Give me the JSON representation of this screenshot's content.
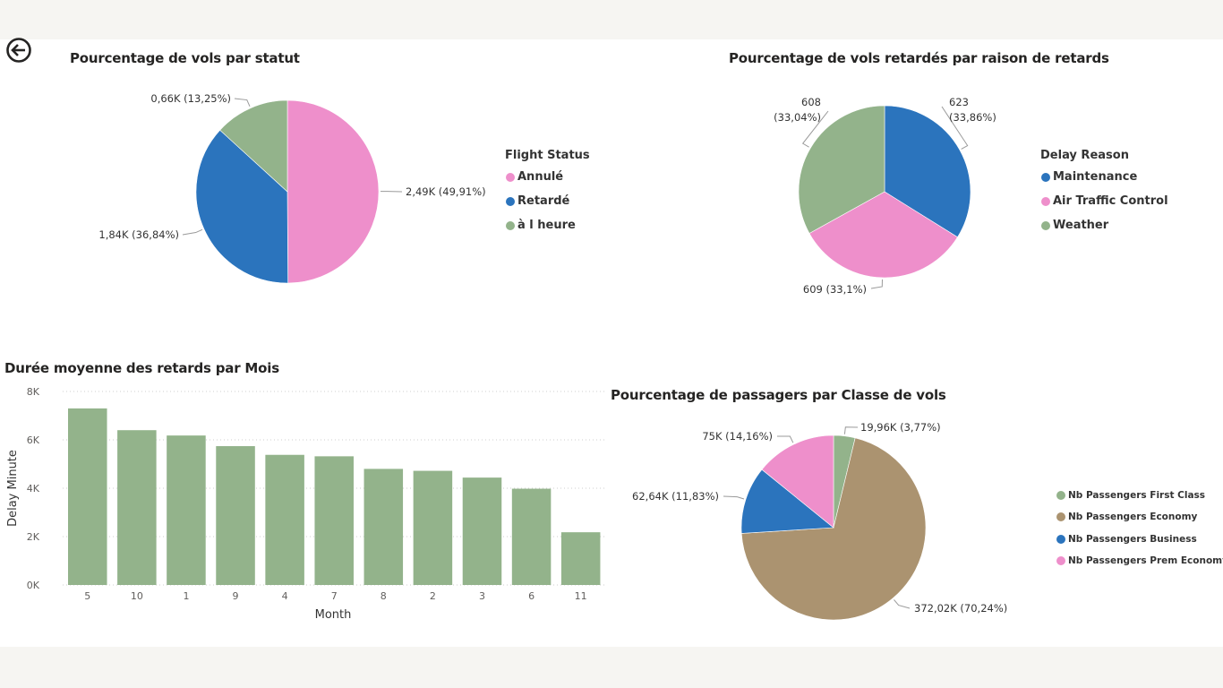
{
  "chart_data": [
    {
      "type": "pie",
      "title": "Pourcentage de vols par statut",
      "legend_title": "Flight Status",
      "legend_position": "right",
      "slices": [
        {
          "name": "Annulé",
          "value": 2490,
          "label": "2,49K (49,91%)",
          "color": "#ee8fcb"
        },
        {
          "name": "Retardé",
          "value": 1840,
          "label": "1,84K (36,84%)",
          "color": "#2b74bd"
        },
        {
          "name": "à l heure",
          "value": 660,
          "label": "0,66K (13,25%)",
          "color": "#93b38b"
        }
      ]
    },
    {
      "type": "pie",
      "title": "Pourcentage de vols retardés par raison de retards",
      "legend_title": "Delay Reason",
      "legend_position": "right",
      "slices": [
        {
          "name": "Maintenance",
          "value": 623,
          "label_line1": "623",
          "label_line2": "(33,86%)",
          "color": "#2b74bd"
        },
        {
          "name": "Air Traffic Control",
          "value": 609,
          "label": "609 (33,1%)",
          "color": "#ee8fcb"
        },
        {
          "name": "Weather",
          "value": 608,
          "label_line1": "608",
          "label_line2": "(33,04%)",
          "color": "#93b38b"
        }
      ]
    },
    {
      "type": "bar",
      "title": "Durée moyenne des retards par Mois",
      "xlabel": "Month",
      "ylabel": "Delay Minute",
      "ylim": [
        0,
        8000
      ],
      "yticks": [
        "0K",
        "2K",
        "4K",
        "6K",
        "8K"
      ],
      "grid": true,
      "color": "#93b38b",
      "categories": [
        "5",
        "10",
        "1",
        "9",
        "4",
        "7",
        "8",
        "2",
        "3",
        "6",
        "11"
      ],
      "values": [
        7300,
        6400,
        6180,
        5740,
        5380,
        5320,
        4800,
        4720,
        4440,
        3980,
        2180
      ]
    },
    {
      "type": "pie",
      "title": "Pourcentage de passagers par Classe de vols",
      "legend_position": "right",
      "slices": [
        {
          "name": "Nb Passengers First Class",
          "value": 19960,
          "label": "19,96K (3,77%)",
          "color": "#93b38b"
        },
        {
          "name": "Nb Passengers Economy",
          "value": 372020,
          "label": "372,02K (70,24%)",
          "color": "#ab9370"
        },
        {
          "name": "Nb Passengers Business",
          "value": 62640,
          "label": "62,64K (11,83%)",
          "color": "#2b74bd"
        },
        {
          "name": "Nb Passengers Prem Economy",
          "value": 75000,
          "label": "75K (14,16%)",
          "color": "#ee8fcb"
        }
      ]
    }
  ]
}
